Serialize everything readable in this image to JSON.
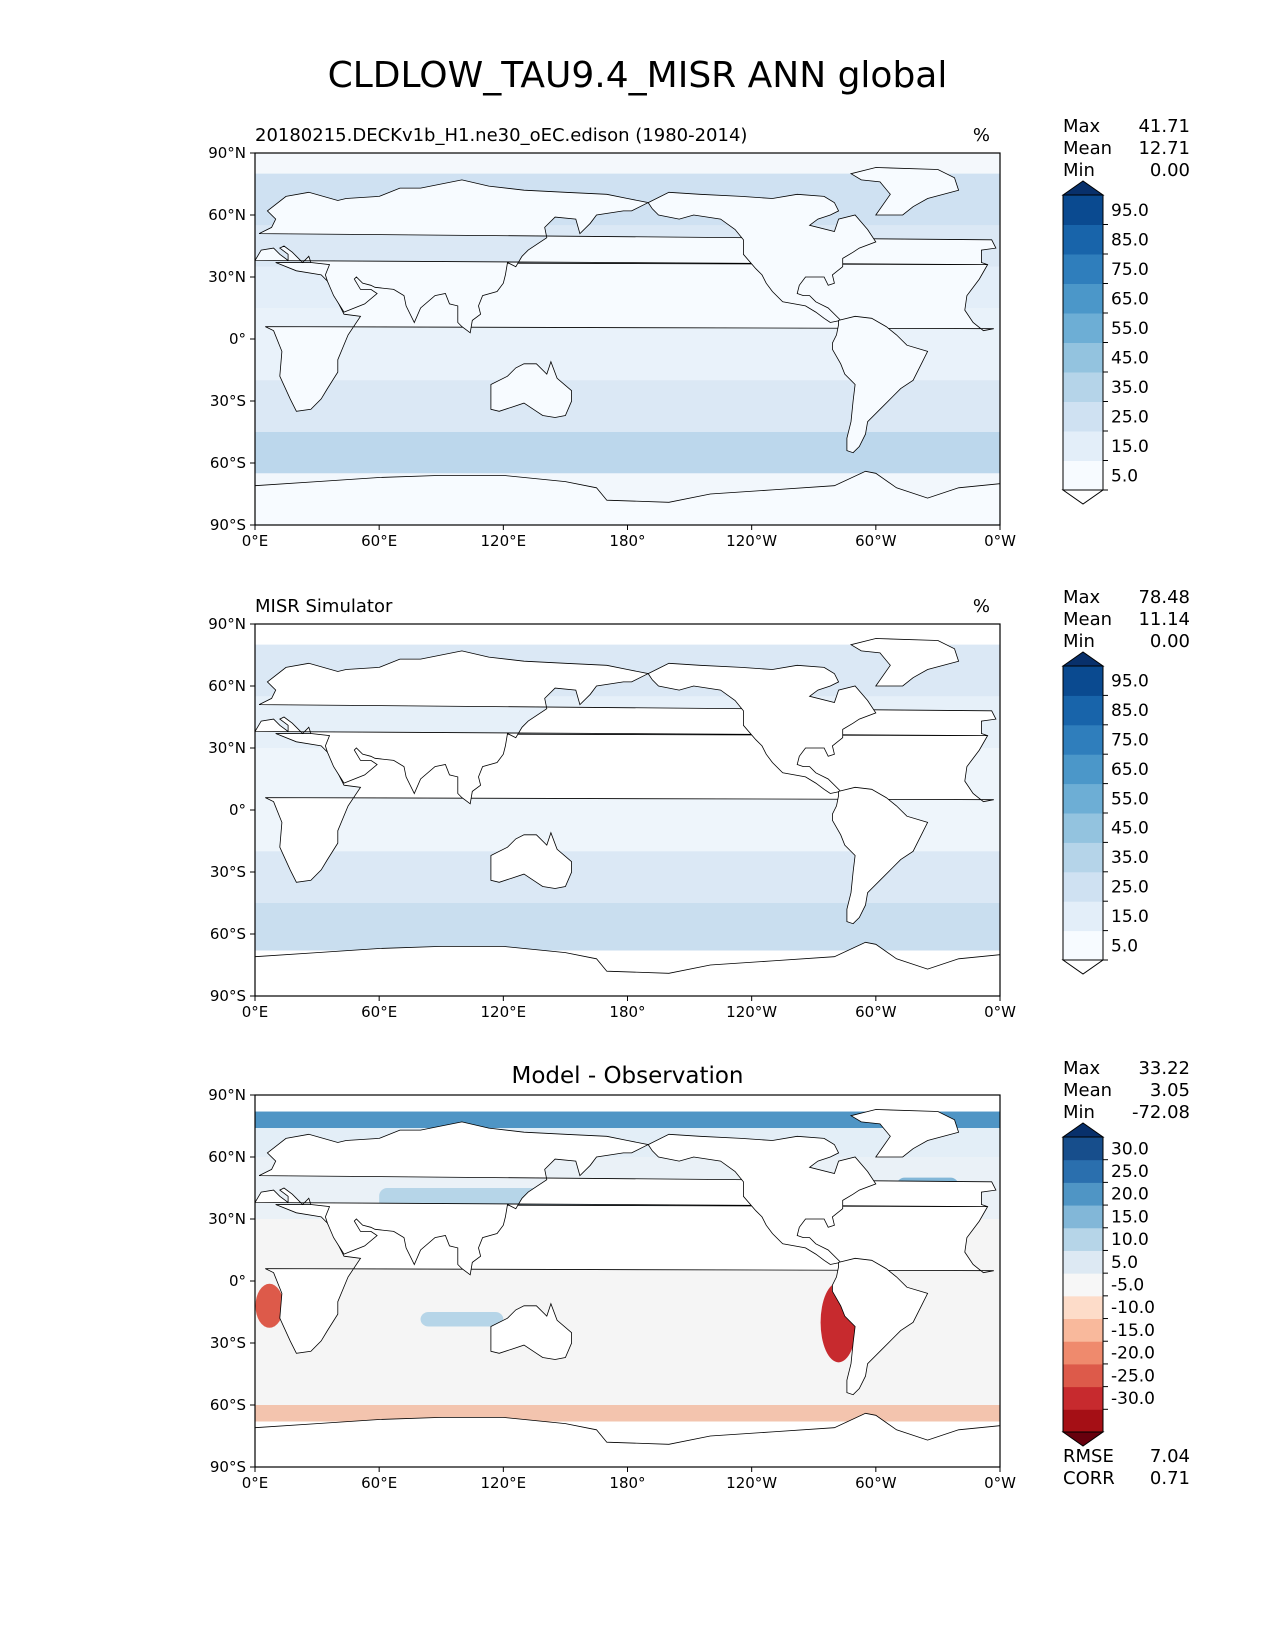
{
  "figure": {
    "title": "CLDLOW_TAU9.4_MISR ANN global"
  },
  "axes": {
    "xticks": [
      "0°E",
      "60°E",
      "120°E",
      "180°",
      "120°W",
      "60°W",
      "0°W"
    ],
    "yticks": [
      "90°N",
      "60°N",
      "30°N",
      "0°",
      "30°S",
      "60°S",
      "90°S"
    ]
  },
  "chart_data": [
    {
      "type": "heatmap",
      "panel": "model",
      "title_left": "20180215.DECKv1b_H1.ne30_oEC.edison (1980-2014)",
      "title_center": "",
      "units": "%",
      "stats": [
        {
          "label": "Max",
          "value": "41.71"
        },
        {
          "label": "Mean",
          "value": "12.71"
        },
        {
          "label": "Min",
          "value": "0.00"
        }
      ],
      "xlim": [
        0,
        360
      ],
      "ylim": [
        -90,
        90
      ],
      "colorbar": {
        "extend": "both",
        "tick_labels": [
          "95.0",
          "85.0",
          "75.0",
          "65.0",
          "55.0",
          "45.0",
          "35.0",
          "25.0",
          "15.0",
          "5.0"
        ],
        "colors": [
          "#f7fbff",
          "#e3eef9",
          "#cfe1f2",
          "#b5d4e9",
          "#93c3df",
          "#6daed5",
          "#4b97c9",
          "#2f7ebc",
          "#1864aa",
          "#0a4a90"
        ],
        "over_color": "#08306b",
        "under_color": "#ffffff"
      }
    },
    {
      "type": "heatmap",
      "panel": "observation",
      "title_left": "MISR Simulator",
      "title_center": "",
      "units": "%",
      "stats": [
        {
          "label": "Max",
          "value": "78.48"
        },
        {
          "label": "Mean",
          "value": "11.14"
        },
        {
          "label": "Min",
          "value": "0.00"
        }
      ],
      "xlim": [
        0,
        360
      ],
      "ylim": [
        -90,
        90
      ],
      "colorbar": {
        "extend": "both",
        "tick_labels": [
          "95.0",
          "85.0",
          "75.0",
          "65.0",
          "55.0",
          "45.0",
          "35.0",
          "25.0",
          "15.0",
          "5.0"
        ],
        "colors": [
          "#f7fbff",
          "#e3eef9",
          "#cfe1f2",
          "#b5d4e9",
          "#93c3df",
          "#6daed5",
          "#4b97c9",
          "#2f7ebc",
          "#1864aa",
          "#0a4a90"
        ],
        "over_color": "#08306b",
        "under_color": "#ffffff"
      }
    },
    {
      "type": "heatmap",
      "panel": "difference",
      "title_left": "",
      "title_center": "Model - Observation",
      "units": "",
      "stats": [
        {
          "label": "Max",
          "value": "33.22"
        },
        {
          "label": "Mean",
          "value": "3.05"
        },
        {
          "label": "Min",
          "value": "-72.08"
        }
      ],
      "metrics": [
        {
          "label": "RMSE",
          "value": "7.04"
        },
        {
          "label": "CORR",
          "value": "0.71"
        }
      ],
      "xlim": [
        0,
        360
      ],
      "ylim": [
        -90,
        90
      ],
      "colorbar": {
        "extend": "both",
        "tick_labels": [
          "30.0",
          "25.0",
          "20.0",
          "15.0",
          "10.0",
          "5.0",
          "-5.0",
          "-10.0",
          "-15.0",
          "-20.0",
          "-25.0",
          "-30.0"
        ],
        "colors": [
          "#a50f15",
          "#c72a2e",
          "#dd5a4a",
          "#ef8a6d",
          "#f9b99c",
          "#fddcc9",
          "#f7f7f7",
          "#dde9f3",
          "#b6d5e8",
          "#82b7d8",
          "#4f95c5",
          "#2a6fae",
          "#174e8c"
        ],
        "over_color": "#08306b",
        "under_color": "#67000d"
      }
    }
  ]
}
